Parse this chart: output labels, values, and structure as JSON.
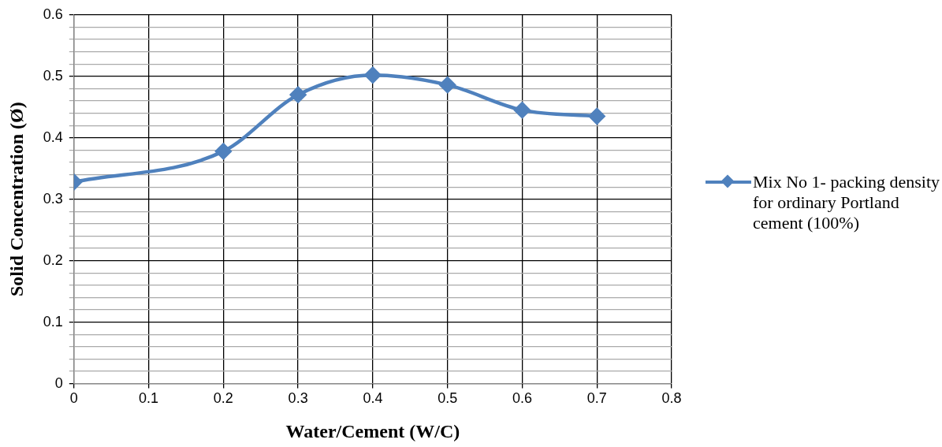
{
  "chart_data": {
    "type": "line",
    "xlabel": "Water/Cement (W/C)",
    "ylabel": "Solid Concentration (Ø)",
    "xlim": [
      0,
      0.8
    ],
    "xticks": [
      0,
      0.1,
      0.2,
      0.3,
      0.4,
      0.5,
      0.6,
      0.7,
      0.8
    ],
    "ylim": [
      0,
      0.6
    ],
    "yticks": [
      0,
      {
        "value": 0.02,
        "label": null
      },
      {
        "value": 0.04,
        "label": null
      },
      {
        "value": 0.06,
        "label": null
      },
      {
        "value": 0.08,
        "label": null
      },
      0.1,
      {
        "value": 0.12,
        "label": null
      },
      {
        "value": 0.14,
        "label": null
      },
      {
        "value": 0.16,
        "label": null
      },
      {
        "value": 0.18,
        "label": null
      },
      0.2,
      {
        "value": 0.22,
        "label": null
      },
      {
        "value": 0.24,
        "label": null
      },
      {
        "value": 0.26,
        "label": null
      },
      {
        "value": 0.28,
        "label": null
      },
      0.3,
      {
        "value": 0.32,
        "label": null
      },
      {
        "value": 0.34,
        "label": null
      },
      {
        "value": 0.36,
        "label": null
      },
      {
        "value": 0.38,
        "label": null
      },
      0.4,
      {
        "value": 0.42,
        "label": null
      },
      {
        "value": 0.44,
        "label": null
      },
      {
        "value": 0.46,
        "label": null
      },
      {
        "value": 0.48,
        "label": null
      },
      0.5,
      {
        "value": 0.52,
        "label": null
      },
      {
        "value": 0.54,
        "label": null
      },
      {
        "value": 0.56,
        "label": null
      },
      {
        "value": 0.58,
        "label": null
      },
      0.6
    ],
    "x": [
      0,
      0.2,
      0.3,
      0.4,
      0.5,
      0.6,
      0.7
    ],
    "series": [
      {
        "name": "Mix No 1- packing density  for ordinary Portland cement (100%)",
        "color": "#4f81bd",
        "values": [
          0.328,
          0.378,
          0.47,
          0.502,
          0.486,
          0.445,
          0.435
        ]
      }
    ],
    "grid": true,
    "legend": "right",
    "marker": "diamond",
    "line_style": "solid"
  }
}
